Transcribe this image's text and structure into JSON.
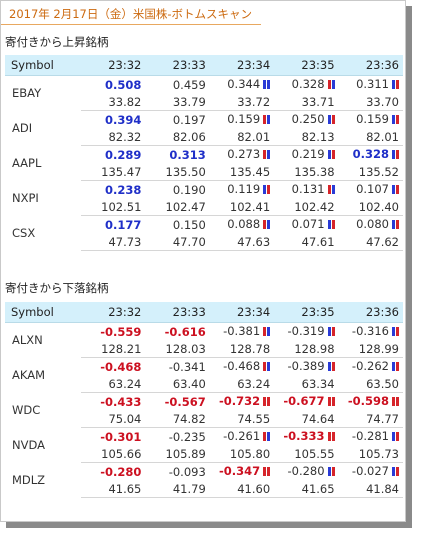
{
  "page": {
    "title": "2017年 2月17日（金）米国株-ボトムスキャン"
  },
  "colors": {
    "title": "#cc6a10",
    "header_bg": "#d4f0fb",
    "positive": "#1f2fc8",
    "negative": "#cc1020",
    "mark_red": "#d6242a",
    "mark_blue": "#2a3ad6"
  },
  "sections": [
    {
      "title": "寄付きから上昇銘柄",
      "columns": [
        "Symbol",
        "23:32",
        "23:33",
        "23:34",
        "23:35",
        "23:36"
      ],
      "rows": [
        {
          "symbol": "EBAY",
          "changes": [
            {
              "v": "0.508",
              "style": "pos-strong"
            },
            {
              "v": "0.459",
              "style": "plain"
            },
            {
              "v": "0.344",
              "style": "plain",
              "mark": "blue-blue"
            },
            {
              "v": "0.328",
              "style": "plain",
              "mark": "red-blue"
            },
            {
              "v": "0.311",
              "style": "plain",
              "mark": "blue-red"
            }
          ],
          "prices": [
            "33.82",
            "33.79",
            "33.72",
            "33.71",
            "33.70"
          ]
        },
        {
          "symbol": "ADI",
          "changes": [
            {
              "v": "0.394",
              "style": "pos-strong"
            },
            {
              "v": "0.197",
              "style": "plain"
            },
            {
              "v": "0.159",
              "style": "plain",
              "mark": "red-blue"
            },
            {
              "v": "0.250",
              "style": "plain",
              "mark": "blue-red"
            },
            {
              "v": "0.159",
              "style": "plain",
              "mark": "blue-red"
            }
          ],
          "prices": [
            "82.32",
            "82.06",
            "82.01",
            "82.13",
            "82.01"
          ]
        },
        {
          "symbol": "AAPL",
          "changes": [
            {
              "v": "0.289",
              "style": "pos-strong"
            },
            {
              "v": "0.313",
              "style": "pos-strong"
            },
            {
              "v": "0.273",
              "style": "plain",
              "mark": "red-blue"
            },
            {
              "v": "0.219",
              "style": "plain",
              "mark": "blue-red"
            },
            {
              "v": "0.328",
              "style": "pos-strong",
              "mark": "blue-red"
            }
          ],
          "prices": [
            "135.47",
            "135.50",
            "135.45",
            "135.38",
            "135.52"
          ]
        },
        {
          "symbol": "NXPI",
          "changes": [
            {
              "v": "0.238",
              "style": "pos-strong"
            },
            {
              "v": "0.190",
              "style": "plain"
            },
            {
              "v": "0.119",
              "style": "plain",
              "mark": "blue-red"
            },
            {
              "v": "0.131",
              "style": "plain",
              "mark": "red-blue"
            },
            {
              "v": "0.107",
              "style": "plain",
              "mark": "blue-red"
            }
          ],
          "prices": [
            "102.51",
            "102.47",
            "102.41",
            "102.42",
            "102.40"
          ]
        },
        {
          "symbol": "CSX",
          "changes": [
            {
              "v": "0.177",
              "style": "pos-strong"
            },
            {
              "v": "0.150",
              "style": "plain"
            },
            {
              "v": "0.088",
              "style": "plain",
              "mark": "red-blue"
            },
            {
              "v": "0.071",
              "style": "plain",
              "mark": "blue-red"
            },
            {
              "v": "0.080",
              "style": "plain",
              "mark": "blue-red"
            }
          ],
          "prices": [
            "47.73",
            "47.70",
            "47.63",
            "47.61",
            "47.62"
          ]
        }
      ]
    },
    {
      "title": "寄付きから下落銘柄",
      "columns": [
        "Symbol",
        "23:32",
        "23:33",
        "23:34",
        "23:35",
        "23:36"
      ],
      "rows": [
        {
          "symbol": "ALXN",
          "changes": [
            {
              "v": "-0.559",
              "style": "neg-strong"
            },
            {
              "v": "-0.616",
              "style": "neg-strong"
            },
            {
              "v": "-0.381",
              "style": "plain",
              "mark": "red-blue"
            },
            {
              "v": "-0.319",
              "style": "plain",
              "mark": "blue-red"
            },
            {
              "v": "-0.316",
              "style": "plain",
              "mark": "blue-red"
            }
          ],
          "prices": [
            "128.21",
            "128.03",
            "128.78",
            "128.98",
            "128.99"
          ]
        },
        {
          "symbol": "AKAM",
          "changes": [
            {
              "v": "-0.468",
              "style": "neg-strong"
            },
            {
              "v": "-0.341",
              "style": "plain"
            },
            {
              "v": "-0.468",
              "style": "plain",
              "mark": "red-blue"
            },
            {
              "v": "-0.389",
              "style": "plain",
              "mark": "blue-red"
            },
            {
              "v": "-0.262",
              "style": "plain",
              "mark": "blue-red"
            }
          ],
          "prices": [
            "63.24",
            "63.40",
            "63.24",
            "63.34",
            "63.50"
          ]
        },
        {
          "symbol": "WDC",
          "changes": [
            {
              "v": "-0.433",
              "style": "neg-strong"
            },
            {
              "v": "-0.567",
              "style": "neg-strong"
            },
            {
              "v": "-0.732",
              "style": "neg-strong",
              "mark": "red-red"
            },
            {
              "v": "-0.677",
              "style": "neg-strong",
              "mark": "red-red"
            },
            {
              "v": "-0.598",
              "style": "neg-strong",
              "mark": "red-red"
            }
          ],
          "prices": [
            "75.04",
            "74.82",
            "74.55",
            "74.64",
            "74.77"
          ]
        },
        {
          "symbol": "NVDA",
          "changes": [
            {
              "v": "-0.301",
              "style": "neg-strong"
            },
            {
              "v": "-0.235",
              "style": "plain"
            },
            {
              "v": "-0.261",
              "style": "plain",
              "mark": "red-blue"
            },
            {
              "v": "-0.333",
              "style": "neg-strong",
              "mark": "red-red"
            },
            {
              "v": "-0.281",
              "style": "plain",
              "mark": "blue-red"
            }
          ],
          "prices": [
            "105.66",
            "105.89",
            "105.80",
            "105.55",
            "105.73"
          ]
        },
        {
          "symbol": "MDLZ",
          "changes": [
            {
              "v": "-0.280",
              "style": "neg-strong"
            },
            {
              "v": "-0.093",
              "style": "plain"
            },
            {
              "v": "-0.347",
              "style": "neg-strong",
              "mark": "red-red"
            },
            {
              "v": "-0.280",
              "style": "plain",
              "mark": "blue-red"
            },
            {
              "v": "-0.027",
              "style": "plain",
              "mark": "blue-red"
            }
          ],
          "prices": [
            "41.65",
            "41.79",
            "41.60",
            "41.65",
            "41.84"
          ]
        }
      ]
    }
  ]
}
